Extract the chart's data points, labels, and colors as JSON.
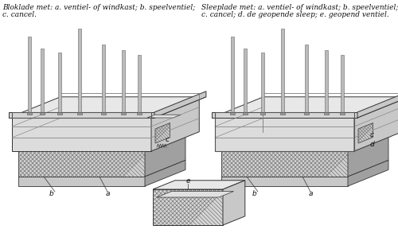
{
  "caption_left_line1": "Bloklade met: a. ventiel- of windkast; b. speelventiel;",
  "caption_left_line2": "c. cancel.",
  "caption_right_line1": "Sleeplade met: a. ventiel- of windkast; b. speelventiel;",
  "caption_right_line2": "c. cancel; d. de geopende sleep; e. geopend ventiel.",
  "bg_color": "#ffffff",
  "fig_width": 5.0,
  "fig_height": 3.13,
  "dpi": 100,
  "text_color": "#111111",
  "caption_fontsize": 6.5,
  "gray_light": "#e8e8e8",
  "gray_mid": "#c8c8c8",
  "gray_dark": "#a0a0a0",
  "gray_darker": "#707070",
  "line_color": "#333333",
  "hatch_color": "#555555"
}
